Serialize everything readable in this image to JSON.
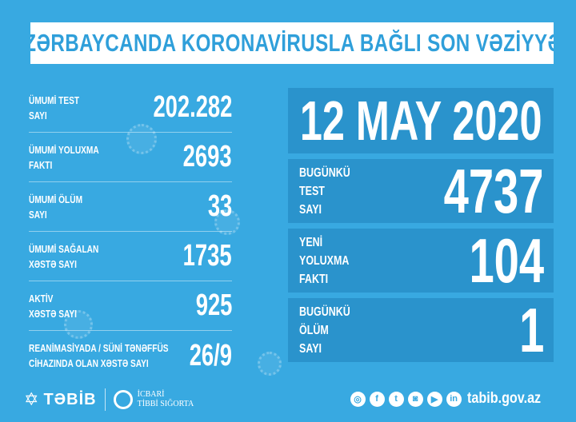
{
  "title": "AZƏRBAYCANDA KORONAVİRUSLA BAĞLI SON VƏZİYYƏT",
  "totals": [
    {
      "label_1": "ÜMUMİ TEST",
      "label_2": "SAYI",
      "value": "202.282"
    },
    {
      "label_1": "ÜMUMİ YOLUXMA",
      "label_2": "FAKTI",
      "value": "2693"
    },
    {
      "label_1": "ÜMUMİ ÖLÜM",
      "label_2": "SAYI",
      "value": "33"
    },
    {
      "label_1": "ÜMUMİ SAĞALAN",
      "label_2": "XƏSTƏ SAYI",
      "value": "1735"
    },
    {
      "label_1": "AKTİV",
      "label_2": "XƏSTƏ SAYI",
      "value": "925"
    },
    {
      "label_1": "REANİMASİYADA / SÜNİ TƏNƏFFÜS",
      "label_2": "CİHAZINDA OLAN XƏSTƏ SAYI",
      "value": "26/9"
    }
  ],
  "date": "12 MAY 2020",
  "daily": [
    {
      "label_1": "BUGÜNKÜ",
      "label_2": "TEST",
      "label_3": "SAYI",
      "value": "4737"
    },
    {
      "label_1": "YENİ",
      "label_2": "YOLUXMA",
      "label_3": "FAKTI",
      "value": "104"
    },
    {
      "label_1": "BUGÜNKÜ",
      "label_2": "ÖLÜM",
      "label_3": "SAYI",
      "value": "1"
    }
  ],
  "footer": {
    "brand": "TƏBİB",
    "insurance_1": "İCBARİ",
    "insurance_2": "TİBBİ SIĞORTA",
    "social_icons": [
      "web-icon",
      "facebook-icon",
      "twitter-icon",
      "instagram-icon",
      "youtube-icon",
      "linkedin-icon"
    ],
    "url": "tabib.gov.az"
  },
  "colors": {
    "background": "#38a9e1",
    "box": "#2a93cc",
    "title_text": "#2f9fda"
  }
}
